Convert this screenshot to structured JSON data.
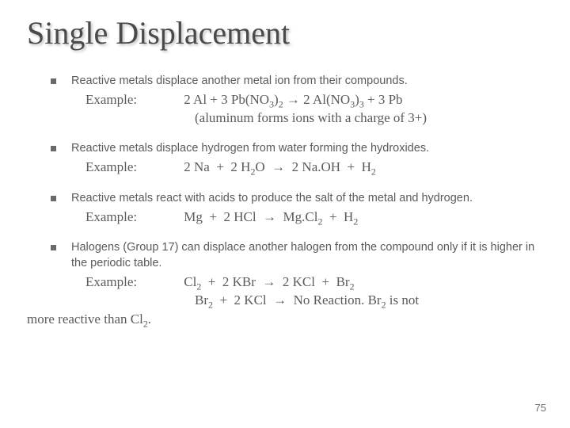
{
  "colors": {
    "title_color": "#4a4a4a",
    "body_color": "#5a5a5a",
    "bullet_color": "#6a6a6a",
    "background": "#ffffff"
  },
  "typography": {
    "title_font": "Times New Roman",
    "title_size_pt": 40,
    "body_font": "Verdana",
    "body_size_pt": 14.5,
    "example_font": "Comic Sans MS",
    "example_size_pt": 17
  },
  "title": "Single Displacement",
  "bullets": [
    {
      "lead": "Reactive metals displace another metal ion from their compounds.",
      "example_label": "Example:",
      "eq1": "2 Al + 3 Pb(NO₃)₂ → 2 Al(NO₃)₃ + 3 Pb",
      "eq2": "(aluminum forms ions with a charge of 3+)"
    },
    {
      "lead": "Reactive metals displace hydrogen from water forming the hydroxides.",
      "example_label": "Example:",
      "eq1": "2 Na  +  2 H₂O  →  2 Na.OH  +  H₂"
    },
    {
      "lead": "Reactive metals react with acids to produce the salt of the metal and hydrogen.",
      "example_label": "Example:",
      "eq1": "Mg  +  2 HCl  →  Mg.Cl₂  +  H₂"
    },
    {
      "lead": "Halogens (Group 17) can displace another halogen from the compound only if it is higher in the periodic table.",
      "example_label": "Example:",
      "eq1": "Cl₂  +  2 KBr  →  2 KCl  +  Br₂",
      "eq2": "Br₂  +  2 KCl  →  No Reaction. Br₂ is not",
      "trail": "more reactive than Cl₂."
    }
  ],
  "page_number": "75"
}
